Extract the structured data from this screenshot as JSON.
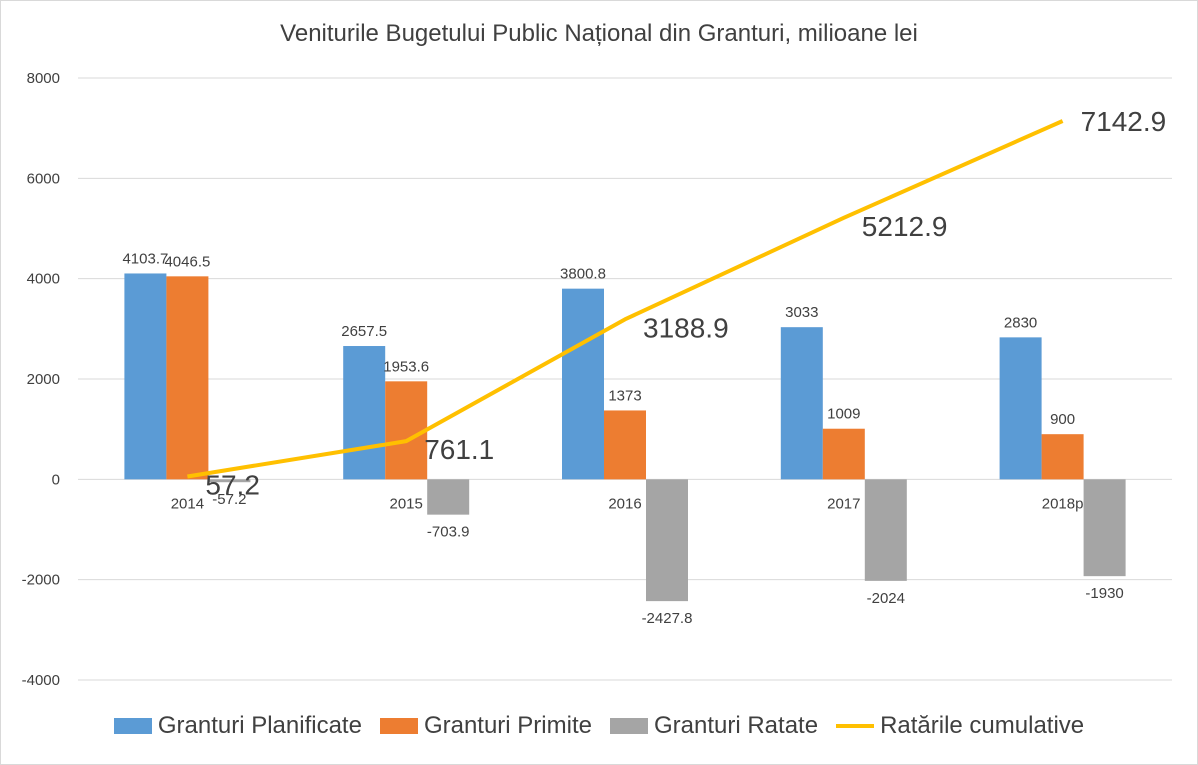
{
  "title": "Veniturile Bugetului Public Național din Granturi, milioane lei",
  "colors": {
    "planificate": "#5b9bd5",
    "primite": "#ed7d31",
    "ratate": "#a5a5a5",
    "cumulative": "#ffc000",
    "grid": "#d9d9d9"
  },
  "legend": [
    {
      "label": "Granturi Planificate",
      "color_key": "planificate",
      "kind": "bar"
    },
    {
      "label": "Granturi Primite",
      "color_key": "primite",
      "kind": "bar"
    },
    {
      "label": "Granturi Ratate",
      "color_key": "ratate",
      "kind": "bar"
    },
    {
      "label": "Ratările cumulative",
      "color_key": "cumulative",
      "kind": "line"
    }
  ],
  "chart_data": {
    "type": "bar",
    "title": "Veniturile Bugetului Public Național din Granturi, milioane lei",
    "categories": [
      "2014",
      "2015",
      "2016",
      "2017",
      "2018p"
    ],
    "ylim": [
      -4000,
      8000
    ],
    "yticks": [
      8000,
      6000,
      4000,
      2000,
      0,
      -2000,
      -4000
    ],
    "grid": true,
    "legend_position": "bottom",
    "series": [
      {
        "name": "Granturi Planificate",
        "type": "bar",
        "values": [
          4103.7,
          2657.5,
          3800.8,
          3033,
          2830
        ],
        "labels": [
          "4103.7",
          "2657.5",
          "3800.8",
          "3033",
          "2830"
        ]
      },
      {
        "name": "Granturi Primite",
        "type": "bar",
        "values": [
          4046.5,
          1953.6,
          1373,
          1009,
          900
        ],
        "labels": [
          "4046.5",
          "1953.6",
          "1373",
          "1009",
          "900"
        ]
      },
      {
        "name": "Granturi Ratate",
        "type": "bar",
        "values": [
          -57.2,
          -703.9,
          -2427.8,
          -2024,
          -1930
        ],
        "labels": [
          "-57.2",
          "-703.9",
          "-2427.8",
          "-2024",
          "-1930"
        ]
      },
      {
        "name": "Ratările cumulative",
        "type": "line",
        "values": [
          57.2,
          761.1,
          3188.9,
          5212.9,
          7142.9
        ],
        "labels": [
          "57.2",
          "761.1",
          "3188.9",
          "5212.9",
          "7142.9"
        ]
      }
    ]
  }
}
